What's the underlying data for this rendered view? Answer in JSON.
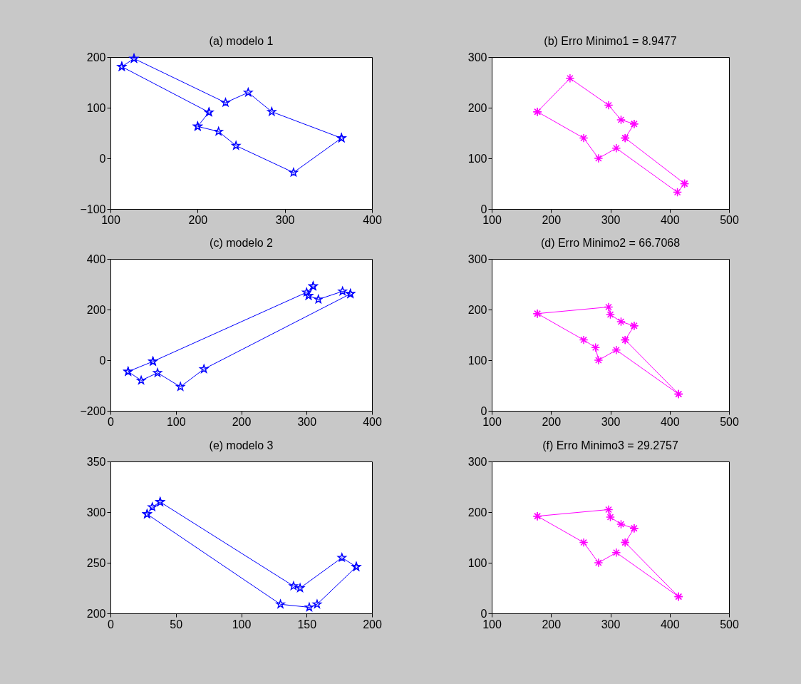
{
  "chart_data": [
    {
      "type": "line",
      "title": "(a) modelo 1",
      "marker": "star",
      "xlim": [
        100,
        400
      ],
      "xticks": [
        100,
        200,
        300,
        400
      ],
      "ylim": [
        -100,
        200
      ],
      "yticks": [
        -100,
        0,
        100,
        200
      ],
      "series": [
        {
          "color": "#0000ff",
          "x": [
            127,
            232,
            258,
            285,
            365
          ],
          "values": [
            197,
            110,
            130,
            92,
            40
          ]
        },
        {
          "color": "#0000ff",
          "x": [
            365,
            310,
            244,
            224,
            200
          ],
          "values": [
            40,
            -28,
            25,
            53,
            63
          ]
        },
        {
          "color": "#0000ff",
          "x": [
            200,
            213
          ],
          "values": [
            63,
            91
          ]
        },
        {
          "color": "#0000ff",
          "x": [
            213,
            113
          ],
          "values": [
            91,
            181
          ]
        },
        {
          "color": "#0000ff",
          "x": [
            113,
            127
          ],
          "values": [
            181,
            197
          ]
        }
      ]
    },
    {
      "type": "line",
      "title": "(b) Erro Minimo1 = 8.9477",
      "marker": "cross",
      "xlim": [
        100,
        500
      ],
      "xticks": [
        100,
        200,
        300,
        400,
        500
      ],
      "ylim": [
        0,
        300
      ],
      "yticks": [
        0,
        100,
        200,
        300
      ],
      "series": [
        {
          "color": "#ff00ff",
          "x": [
            177,
            232,
            297,
            318,
            340
          ],
          "values": [
            192,
            258,
            205,
            176,
            168
          ]
        },
        {
          "color": "#ff00ff",
          "x": [
            340,
            325
          ],
          "values": [
            168,
            140
          ]
        },
        {
          "color": "#ff00ff",
          "x": [
            325,
            425
          ],
          "values": [
            140,
            50
          ]
        },
        {
          "color": "#ff00ff",
          "x": [
            425,
            413,
            310,
            280,
            255,
            177
          ],
          "values": [
            50,
            33,
            120,
            100,
            140,
            192
          ]
        }
      ]
    },
    {
      "type": "line",
      "title": "(c) modelo 2",
      "marker": "star",
      "xlim": [
        0,
        400
      ],
      "xticks": [
        0,
        100,
        200,
        300,
        400
      ],
      "ylim": [
        -200,
        400
      ],
      "yticks": [
        -200,
        0,
        200,
        400
      ],
      "series": [
        {
          "color": "#0000ff",
          "x": [
            65,
            300,
            310
          ],
          "values": [
            -5,
            268,
            292
          ]
        },
        {
          "color": "#0000ff",
          "x": [
            310,
            303
          ],
          "values": [
            292,
            255
          ]
        },
        {
          "color": "#0000ff",
          "x": [
            303,
            318,
            355,
            367
          ],
          "values": [
            255,
            240,
            272,
            262
          ]
        },
        {
          "color": "#0000ff",
          "x": [
            367,
            143,
            107,
            72,
            47,
            27
          ],
          "values": [
            262,
            -35,
            -105,
            -50,
            -80,
            -45
          ]
        },
        {
          "color": "#0000ff",
          "x": [
            27,
            65
          ],
          "values": [
            -45,
            -5
          ]
        }
      ]
    },
    {
      "type": "line",
      "title": "(d) Erro Minimo2 = 66.7068",
      "marker": "cross",
      "xlim": [
        100,
        500
      ],
      "xticks": [
        100,
        200,
        300,
        400,
        500
      ],
      "ylim": [
        0,
        300
      ],
      "yticks": [
        0,
        100,
        200,
        300
      ],
      "series": [
        {
          "color": "#ff00ff",
          "x": [
            177,
            297,
            300,
            318,
            340
          ],
          "values": [
            192,
            205,
            190,
            176,
            168
          ]
        },
        {
          "color": "#ff00ff",
          "x": [
            340,
            325
          ],
          "values": [
            168,
            140
          ]
        },
        {
          "color": "#ff00ff",
          "x": [
            325,
            415
          ],
          "values": [
            140,
            33
          ]
        },
        {
          "color": "#ff00ff",
          "x": [
            415,
            310,
            280,
            275,
            255,
            177
          ],
          "values": [
            33,
            120,
            100,
            125,
            140,
            192
          ]
        }
      ]
    },
    {
      "type": "line",
      "title": "(e) modelo 3",
      "marker": "star",
      "xlim": [
        0,
        200
      ],
      "xticks": [
        0,
        50,
        100,
        150,
        200
      ],
      "ylim": [
        200,
        350
      ],
      "yticks": [
        200,
        250,
        300,
        350
      ],
      "series": [
        {
          "color": "#0000ff",
          "x": [
            38,
            140,
            145,
            177,
            188
          ],
          "values": [
            310,
            227,
            225,
            255,
            246
          ]
        },
        {
          "color": "#0000ff",
          "x": [
            188,
            158,
            152,
            130,
            28
          ],
          "values": [
            246,
            209,
            206,
            209,
            298
          ]
        },
        {
          "color": "#0000ff",
          "x": [
            28,
            32,
            38
          ],
          "values": [
            298,
            305,
            310
          ]
        }
      ]
    },
    {
      "type": "line",
      "title": "(f) Erro Minimo3 = 29.2757",
      "marker": "cross",
      "xlim": [
        100,
        500
      ],
      "xticks": [
        100,
        200,
        300,
        400,
        500
      ],
      "ylim": [
        0,
        300
      ],
      "yticks": [
        0,
        100,
        200,
        300
      ],
      "series": [
        {
          "color": "#ff00ff",
          "x": [
            177,
            297,
            300,
            318,
            340
          ],
          "values": [
            192,
            205,
            190,
            176,
            168
          ]
        },
        {
          "color": "#ff00ff",
          "x": [
            340,
            325
          ],
          "values": [
            168,
            140
          ]
        },
        {
          "color": "#ff00ff",
          "x": [
            325,
            415
          ],
          "values": [
            140,
            33
          ]
        },
        {
          "color": "#ff00ff",
          "x": [
            415,
            310,
            280,
            255,
            177
          ],
          "values": [
            33,
            120,
            100,
            140,
            192
          ]
        }
      ]
    }
  ]
}
